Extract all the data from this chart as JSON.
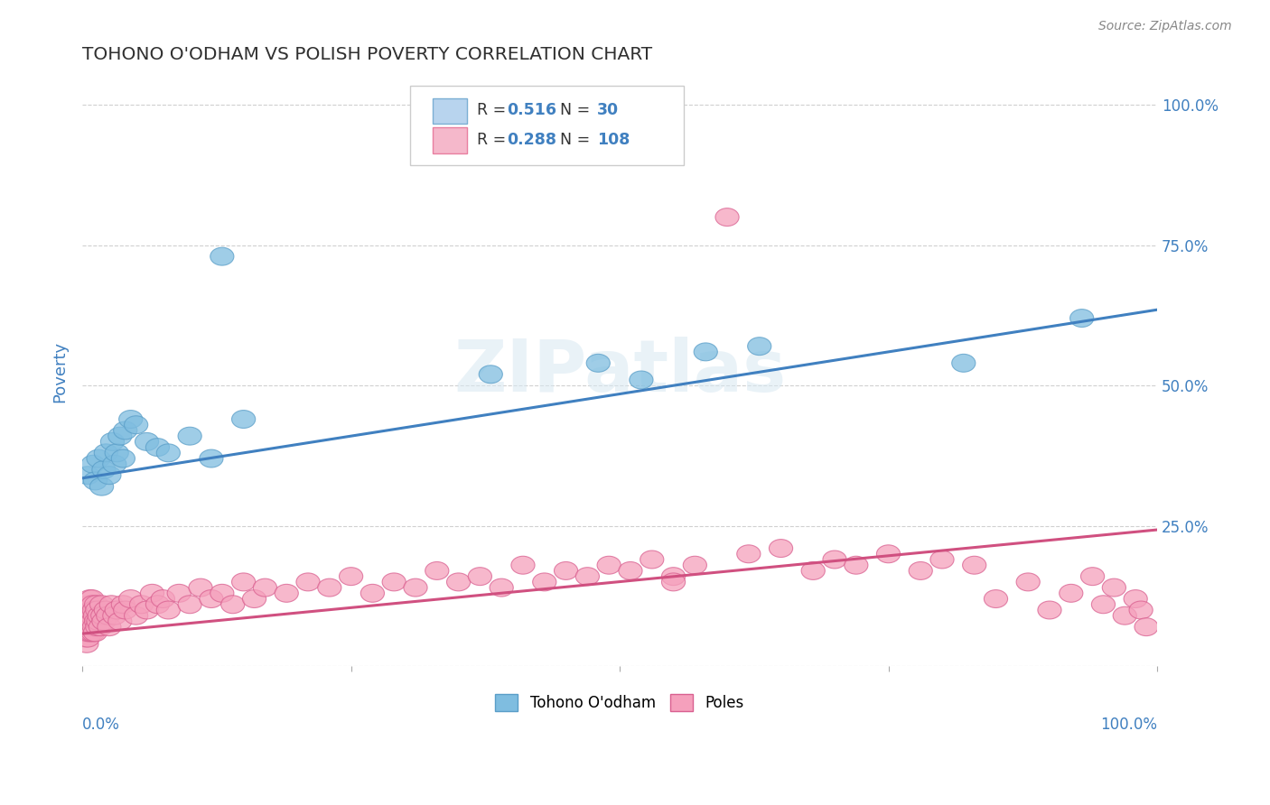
{
  "title": "TOHONO O'ODHAM VS POLISH POVERTY CORRELATION CHART",
  "source": "Source: ZipAtlas.com",
  "ylabel": "Poverty",
  "right_yticklabels": [
    "",
    "25.0%",
    "50.0%",
    "75.0%",
    "100.0%"
  ],
  "legend_r_n": [
    {
      "r": "0.516",
      "n": "30",
      "color": "#b8d4ee",
      "edge": "#7bafd4"
    },
    {
      "r": "0.288",
      "n": "108",
      "color": "#f5b8cb",
      "edge": "#e87fa0"
    }
  ],
  "blue_color": "#7fbde0",
  "blue_edge": "#5a9ec8",
  "pink_color": "#f5a0bc",
  "pink_edge": "#d96090",
  "blue_line_color": "#4080c0",
  "pink_line_color": "#d05080",
  "watermark_text": "ZIPatlas",
  "tohono_x": [
    0.005,
    0.01,
    0.012,
    0.015,
    0.018,
    0.02,
    0.022,
    0.025,
    0.028,
    0.03,
    0.032,
    0.035,
    0.038,
    0.04,
    0.045,
    0.05,
    0.06,
    0.07,
    0.08,
    0.1,
    0.12,
    0.15,
    0.13,
    0.38,
    0.48,
    0.52,
    0.58,
    0.63,
    0.82,
    0.93
  ],
  "tohono_y": [
    0.34,
    0.36,
    0.33,
    0.37,
    0.32,
    0.35,
    0.38,
    0.34,
    0.4,
    0.36,
    0.38,
    0.41,
    0.37,
    0.42,
    0.44,
    0.43,
    0.4,
    0.39,
    0.38,
    0.41,
    0.37,
    0.44,
    0.73,
    0.52,
    0.54,
    0.51,
    0.56,
    0.57,
    0.54,
    0.62
  ],
  "poles_x": [
    0.001,
    0.002,
    0.003,
    0.003,
    0.004,
    0.004,
    0.004,
    0.005,
    0.005,
    0.005,
    0.005,
    0.006,
    0.006,
    0.006,
    0.007,
    0.007,
    0.007,
    0.008,
    0.008,
    0.008,
    0.009,
    0.009,
    0.009,
    0.01,
    0.01,
    0.01,
    0.011,
    0.011,
    0.012,
    0.012,
    0.013,
    0.013,
    0.014,
    0.014,
    0.015,
    0.016,
    0.017,
    0.018,
    0.019,
    0.02,
    0.022,
    0.024,
    0.025,
    0.027,
    0.03,
    0.032,
    0.035,
    0.038,
    0.04,
    0.045,
    0.05,
    0.055,
    0.06,
    0.065,
    0.07,
    0.075,
    0.08,
    0.09,
    0.1,
    0.11,
    0.12,
    0.13,
    0.14,
    0.15,
    0.16,
    0.17,
    0.19,
    0.21,
    0.23,
    0.25,
    0.27,
    0.29,
    0.31,
    0.33,
    0.35,
    0.37,
    0.39,
    0.41,
    0.43,
    0.45,
    0.47,
    0.49,
    0.51,
    0.53,
    0.55,
    0.57,
    0.6,
    0.62,
    0.55,
    0.65,
    0.68,
    0.7,
    0.72,
    0.75,
    0.78,
    0.8,
    0.83,
    0.85,
    0.88,
    0.9,
    0.92,
    0.94,
    0.95,
    0.96,
    0.97,
    0.98,
    0.985,
    0.99
  ],
  "poles_y": [
    0.08,
    0.06,
    0.05,
    0.07,
    0.04,
    0.06,
    0.08,
    0.05,
    0.07,
    0.09,
    0.1,
    0.06,
    0.08,
    0.11,
    0.07,
    0.09,
    0.12,
    0.06,
    0.08,
    0.1,
    0.07,
    0.09,
    0.12,
    0.06,
    0.08,
    0.11,
    0.07,
    0.1,
    0.06,
    0.09,
    0.08,
    0.11,
    0.07,
    0.1,
    0.08,
    0.09,
    0.07,
    0.11,
    0.09,
    0.08,
    0.1,
    0.09,
    0.07,
    0.11,
    0.09,
    0.1,
    0.08,
    0.11,
    0.1,
    0.12,
    0.09,
    0.11,
    0.1,
    0.13,
    0.11,
    0.12,
    0.1,
    0.13,
    0.11,
    0.14,
    0.12,
    0.13,
    0.11,
    0.15,
    0.12,
    0.14,
    0.13,
    0.15,
    0.14,
    0.16,
    0.13,
    0.15,
    0.14,
    0.17,
    0.15,
    0.16,
    0.14,
    0.18,
    0.15,
    0.17,
    0.16,
    0.18,
    0.17,
    0.19,
    0.16,
    0.18,
    0.8,
    0.2,
    0.15,
    0.21,
    0.17,
    0.19,
    0.18,
    0.2,
    0.17,
    0.19,
    0.18,
    0.12,
    0.15,
    0.1,
    0.13,
    0.16,
    0.11,
    0.14,
    0.09,
    0.12,
    0.1,
    0.07
  ],
  "xlim": [
    0.0,
    1.0
  ],
  "ylim": [
    0.0,
    1.05
  ],
  "background_color": "#ffffff",
  "grid_color": "#d0d0d0",
  "title_color": "#303030",
  "value_color": "#4080c0",
  "label_color": "#4080c0"
}
